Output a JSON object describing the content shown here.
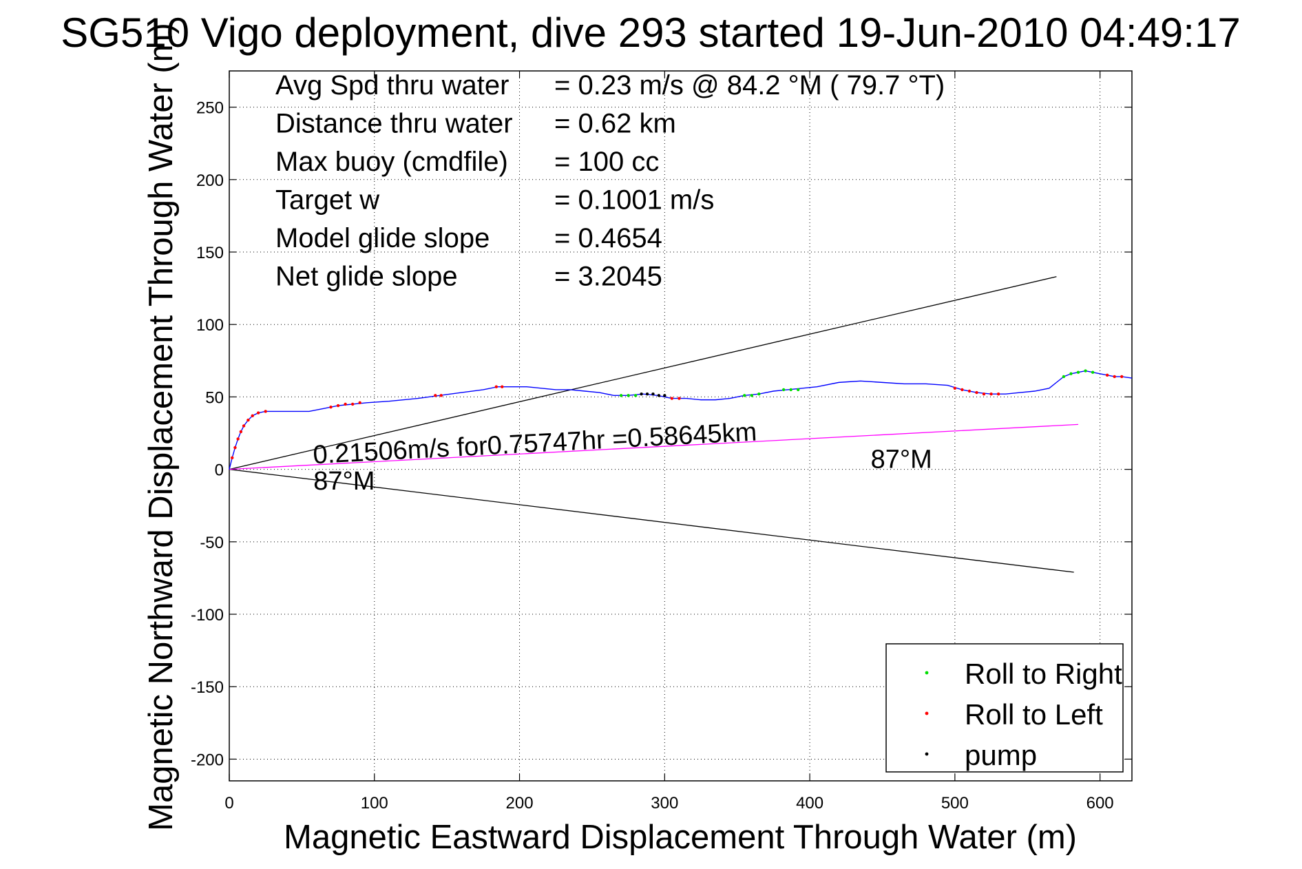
{
  "chart_data": {
    "type": "line",
    "title": "SG510 Vigo deployment, dive 293 started 19-Jun-2010 04:49:17",
    "xlabel": "Magnetic Eastward Displacement Through Water (m)",
    "ylabel": "Magnetic Northward Displacement Through Water (m)",
    "xlim": [
      0,
      622
    ],
    "ylim": [
      -215,
      275
    ],
    "xticks": [
      0,
      100,
      200,
      300,
      400,
      500,
      600
    ],
    "yticks": [
      -200,
      -150,
      -100,
      -50,
      0,
      50,
      100,
      150,
      200,
      250
    ],
    "grid": true,
    "legend_position": "bottom-right",
    "stats": [
      {
        "label": "Avg Spd thru water",
        "value": "=  0.23 m/s @  84.2 °M ( 79.7 °T)"
      },
      {
        "label": "Distance thru water",
        "value": "=  0.62 km"
      },
      {
        "label": "Max buoy (cmdfile)",
        "value": "= 100 cc"
      },
      {
        "label": "Target w",
        "value": "= 0.1001 m/s"
      },
      {
        "label": "Model glide slope",
        "value": "= 0.4654"
      },
      {
        "label": "Net glide slope",
        "value": "= 3.2045"
      }
    ],
    "annotations": [
      {
        "text": "0.21506m/s for0.75747hr =0.58645km",
        "x": 58,
        "y": 4,
        "rotate": -3
      },
      {
        "text": "87°M",
        "x": 58,
        "y": -14,
        "rotate": 0
      },
      {
        "text": "87°M",
        "x": 442,
        "y": 1,
        "rotate": 0
      }
    ],
    "reference_lines": [
      {
        "name": "upper-bound",
        "color": "#000000",
        "x": [
          0,
          570
        ],
        "y": [
          0,
          133
        ]
      },
      {
        "name": "lower-bound",
        "color": "#000000",
        "x": [
          0,
          582
        ],
        "y": [
          0,
          -71
        ]
      },
      {
        "name": "net-track",
        "color": "#ff00ff",
        "x": [
          0,
          585
        ],
        "y": [
          0,
          31
        ]
      }
    ],
    "track": {
      "color": "#0000ff",
      "x": [
        0,
        2,
        4,
        6,
        8,
        10,
        13,
        16,
        20,
        25,
        30,
        40,
        55,
        65,
        75,
        85,
        95,
        110,
        130,
        145,
        160,
        175,
        185,
        195,
        205,
        215,
        225,
        235,
        245,
        255,
        265,
        275,
        285,
        295,
        300,
        305,
        315,
        325,
        335,
        345,
        355,
        365,
        375,
        385,
        395,
        405,
        420,
        435,
        450,
        465,
        480,
        495,
        505,
        515,
        525,
        535,
        545,
        555,
        565,
        570,
        575,
        580,
        585,
        590,
        595,
        600,
        605,
        610,
        615,
        622
      ],
      "y": [
        0,
        8,
        15,
        21,
        26,
        30,
        34,
        37,
        39,
        40,
        40,
        40,
        40,
        42,
        44,
        45,
        46,
        47,
        49,
        51,
        53,
        55,
        57,
        57,
        57,
        56,
        55,
        55,
        54,
        53,
        51,
        51,
        52,
        51,
        50,
        49,
        49,
        48,
        48,
        49,
        51,
        52,
        54,
        55,
        56,
        57,
        60,
        61,
        60,
        59,
        59,
        58,
        55,
        53,
        52,
        52,
        53,
        54,
        56,
        60,
        64,
        66,
        67,
        68,
        67,
        66,
        65,
        64,
        64,
        63
      ]
    },
    "series": [
      {
        "name": "Roll to Right",
        "color": "#00dd00",
        "marker": "dot",
        "x": [
          270,
          275,
          280,
          355,
          360,
          365,
          382,
          387,
          392,
          575,
          580,
          585,
          590,
          595
        ],
        "y": [
          51,
          51,
          51,
          51,
          51,
          52,
          55,
          55,
          55,
          64,
          66,
          67,
          68,
          67
        ]
      },
      {
        "name": "Roll to Left",
        "color": "#ff0000",
        "marker": "dot",
        "x": [
          2,
          4,
          6,
          8,
          10,
          13,
          16,
          20,
          25,
          70,
          75,
          80,
          85,
          90,
          142,
          146,
          184,
          188,
          305,
          310,
          500,
          505,
          510,
          515,
          520,
          525,
          530,
          605,
          610,
          615
        ],
        "y": [
          8,
          15,
          21,
          26,
          30,
          34,
          37,
          39,
          40,
          43,
          44,
          45,
          45,
          46,
          51,
          51,
          57,
          57,
          49,
          49,
          56,
          55,
          54,
          53,
          52,
          52,
          52,
          65,
          64,
          64
        ]
      },
      {
        "name": "pump",
        "color": "#000000",
        "marker": "dot",
        "x": [
          284,
          288,
          292,
          296,
          300
        ],
        "y": [
          52,
          52,
          52,
          51,
          51
        ]
      }
    ]
  }
}
